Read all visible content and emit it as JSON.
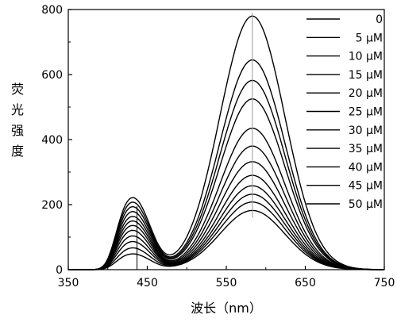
{
  "chart_data": {
    "type": "line",
    "title": "",
    "xlabel": "波长（nm）",
    "ylabel": "荧光强度",
    "xlim": [
      350,
      750
    ],
    "ylim": [
      0,
      800
    ],
    "xticks": [
      350,
      450,
      550,
      650,
      750
    ],
    "yticks": [
      0,
      200,
      400,
      600,
      800
    ],
    "grid": false,
    "legend_position": "top-right",
    "line_color": "#000000",
    "isosbestic_point": {
      "x": 500,
      "y": 105
    },
    "series": [
      {
        "name": "0",
        "peak1": 42,
        "peak2": 182
      },
      {
        "name": "5 μM",
        "peak1": 58,
        "peak2": 208
      },
      {
        "name": "10 μM",
        "peak1": 75,
        "peak2": 232
      },
      {
        "name": "15 μM",
        "peak1": 90,
        "peak2": 258
      },
      {
        "name": "20 μM",
        "peak1": 105,
        "peak2": 290
      },
      {
        "name": "25 μM",
        "peak1": 118,
        "peak2": 332
      },
      {
        "name": "30 μM",
        "peak1": 130,
        "peak2": 380
      },
      {
        "name": "35 μM",
        "peak1": 142,
        "peak2": 435
      },
      {
        "name": "40 μM",
        "peak1": 155,
        "peak2": 525
      },
      {
        "name": "45 μM",
        "peak1": 168,
        "peak2": 582
      },
      {
        "name": "50 μM",
        "peak1": 180,
        "peak2": 645
      }
    ],
    "extra_curve_peak2": 780
  }
}
